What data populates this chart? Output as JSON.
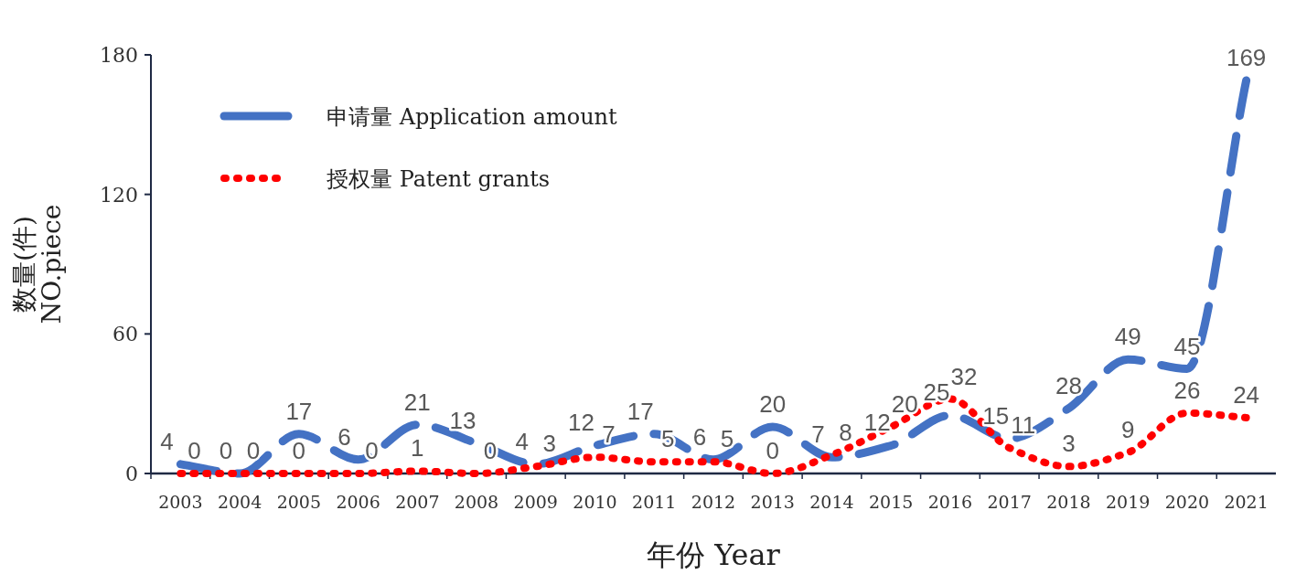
{
  "chart_data": {
    "type": "line",
    "xlabel": "年份 Year",
    "ylabel": "数量(件)\nNO.piece",
    "categories": [
      "2003",
      "2004",
      "2005",
      "2006",
      "2007",
      "2008",
      "2009",
      "2010",
      "2011",
      "2012",
      "2013",
      "2014",
      "2015",
      "2016",
      "2017",
      "2018",
      "2019",
      "2020",
      "2021"
    ],
    "series": [
      {
        "name": "申请量 Application amount",
        "color": "#4472c4",
        "line_style": "dashed",
        "values": [
          4,
          0,
          17,
          6,
          21,
          13,
          4,
          12,
          17,
          6,
          20,
          7,
          12,
          25,
          15,
          28,
          49,
          45,
          169
        ]
      },
      {
        "name": "授权量 Patent grants",
        "color": "#ff0000",
        "line_style": "dotted",
        "values": [
          0,
          0,
          0,
          0,
          1,
          0,
          3,
          7,
          5,
          5,
          0,
          8,
          20,
          32,
          11,
          3,
          9,
          26,
          24
        ]
      }
    ],
    "ylim": [
      0,
      180
    ],
    "yticks": [
      0,
      60,
      120,
      180
    ],
    "grid": false,
    "legend": "top left",
    "marker": "none",
    "data_labels": true
  }
}
